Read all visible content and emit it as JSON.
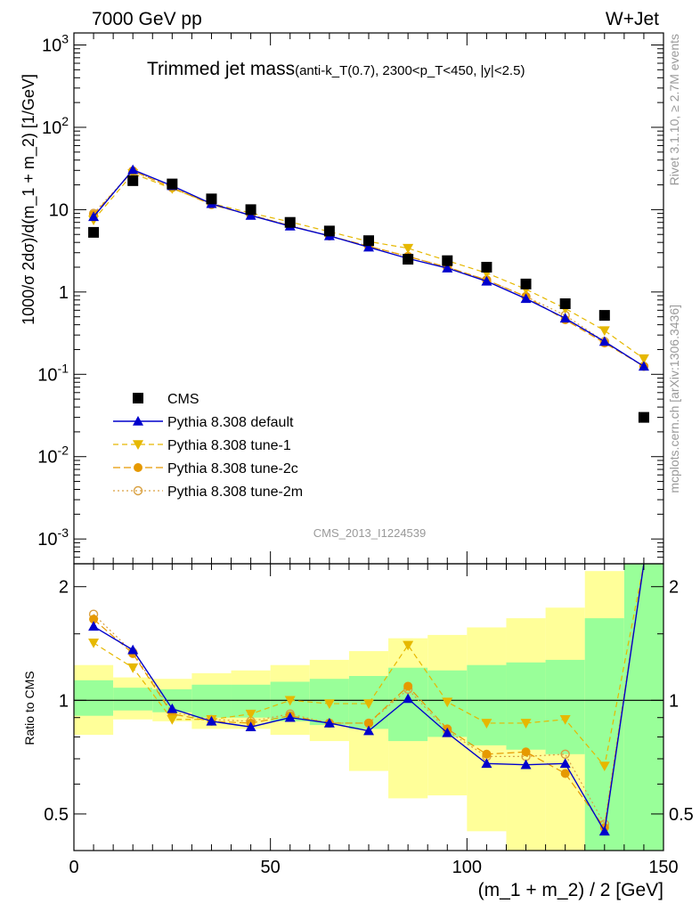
{
  "header": {
    "energy": "7000 GeV pp",
    "process": "W+Jet"
  },
  "side_labels": {
    "rivet": "Rivet 3.1.10, ≥ 2.7M events",
    "mcplots": "mcplots.cern.ch [arXiv:1306.3436]"
  },
  "analysis_id": "CMS_2013_I1224539",
  "colors": {
    "cms": "#000000",
    "default": "#0000cc",
    "tune1": "#e6b800",
    "tune2c": "#e69900",
    "tune2m": "#d9a040",
    "band_inner": "#99ff99",
    "band_outer": "#ffff99"
  },
  "chart_data": {
    "type": "line",
    "title_main": "Trimmed jet mass",
    "title_detail": "(anti-k_T(0.7), 2300<p_T<450, |y|<2.5)",
    "xlabel": "(m_1 + m_2) / 2 [GeV]",
    "ylabel": "1000/σ 2dσ)/d(m_1 + m_2) [1/GeV]",
    "ratio_ylabel": "Ratio to CMS",
    "xlim": [
      0,
      150
    ],
    "ylim": [
      0.0005,
      1400
    ],
    "yscale": "log",
    "ratio_ylim": [
      0.4,
      2.3
    ],
    "ratio_yscale": "log",
    "x_ticks": [
      "0",
      "50",
      "100",
      "150"
    ],
    "y_ticks": [
      "10^-3",
      "10^-2",
      "10^-1",
      "1",
      "10",
      "10^2",
      "10^3"
    ],
    "ratio_ticks": [
      "0.5",
      "1",
      "2"
    ],
    "bins": [
      [
        0,
        10
      ],
      [
        10,
        20
      ],
      [
        20,
        30
      ],
      [
        30,
        40
      ],
      [
        40,
        50
      ],
      [
        50,
        60
      ],
      [
        60,
        70
      ],
      [
        70,
        80
      ],
      [
        80,
        90
      ],
      [
        90,
        100
      ],
      [
        100,
        110
      ],
      [
        110,
        120
      ],
      [
        120,
        130
      ],
      [
        130,
        140
      ],
      [
        140,
        150
      ]
    ],
    "x": [
      5,
      15,
      25,
      35,
      45,
      55,
      65,
      75,
      85,
      95,
      105,
      115,
      125,
      135,
      145
    ],
    "legend_position": "lower-left",
    "series": [
      {
        "name": "CMS",
        "key": "cms",
        "values": [
          5.3,
          22.5,
          20.5,
          13.5,
          10.0,
          7.0,
          5.5,
          4.2,
          2.5,
          2.4,
          2.0,
          1.25,
          0.72,
          0.52,
          0.03
        ]
      },
      {
        "name": "Pythia 8.308 default",
        "key": "default",
        "values": [
          8.2,
          30.5,
          19.5,
          11.8,
          8.5,
          6.3,
          4.8,
          3.5,
          2.55,
          1.95,
          1.35,
          0.83,
          0.48,
          0.25,
          0.125
        ]
      },
      {
        "name": "Pythia 8.308 tune-1",
        "key": "tune1",
        "values": [
          7.5,
          27.5,
          18.0,
          11.9,
          9.1,
          7.1,
          5.4,
          4.1,
          3.4,
          2.4,
          1.7,
          1.08,
          0.63,
          0.34,
          0.155
        ]
      },
      {
        "name": "Pythia 8.308 tune-2c",
        "key": "tune2c",
        "values": [
          8.7,
          29.5,
          18.5,
          11.5,
          8.6,
          6.4,
          4.8,
          3.6,
          2.7,
          2.0,
          1.4,
          0.88,
          0.46,
          0.24,
          0.125
        ]
      },
      {
        "name": "Pythia 8.308 tune-2m",
        "key": "tune2m",
        "values": [
          9.0,
          29.5,
          18.7,
          11.6,
          8.7,
          6.4,
          4.8,
          3.6,
          2.7,
          2.0,
          1.4,
          0.88,
          0.52,
          0.25,
          0.125
        ]
      }
    ],
    "ratio_series": [
      {
        "key": "default",
        "values": [
          1.57,
          1.36,
          0.95,
          0.88,
          0.85,
          0.9,
          0.87,
          0.83,
          1.01,
          0.82,
          0.68,
          0.675,
          0.68,
          0.45,
          4.2
        ]
      },
      {
        "key": "tune1",
        "values": [
          1.42,
          1.22,
          0.89,
          0.89,
          0.92,
          1.0,
          0.98,
          0.98,
          1.4,
          0.99,
          0.87,
          0.87,
          0.89,
          0.67,
          5.0
        ]
      },
      {
        "key": "tune2c",
        "values": [
          1.64,
          1.33,
          0.92,
          0.88,
          0.87,
          0.91,
          0.87,
          0.87,
          1.09,
          0.84,
          0.72,
          0.73,
          0.64,
          0.46,
          4.2
        ]
      },
      {
        "key": "tune2m",
        "values": [
          1.69,
          1.34,
          0.93,
          0.89,
          0.88,
          0.92,
          0.87,
          0.87,
          1.07,
          0.83,
          0.71,
          0.71,
          0.72,
          0.47,
          4.2
        ]
      }
    ],
    "band_inner": [
      [
        0.91,
        1.13
      ],
      [
        0.94,
        1.08
      ],
      [
        0.93,
        1.07
      ],
      [
        0.9,
        1.1
      ],
      [
        0.9,
        1.1
      ],
      [
        0.88,
        1.12
      ],
      [
        0.86,
        1.14
      ],
      [
        0.84,
        1.16
      ],
      [
        0.78,
        1.22
      ],
      [
        0.8,
        1.2
      ],
      [
        0.76,
        1.24
      ],
      [
        0.74,
        1.26
      ],
      [
        0.72,
        1.28
      ],
      [
        0.3,
        1.65
      ],
      [
        0.3,
        2.4
      ]
    ],
    "band_outer": [
      [
        0.81,
        1.24
      ],
      [
        0.89,
        1.15
      ],
      [
        0.88,
        1.14
      ],
      [
        0.84,
        1.18
      ],
      [
        0.84,
        1.2
      ],
      [
        0.81,
        1.24
      ],
      [
        0.78,
        1.28
      ],
      [
        0.65,
        1.35
      ],
      [
        0.55,
        1.46
      ],
      [
        0.56,
        1.49
      ],
      [
        0.45,
        1.56
      ],
      [
        0.3,
        1.65
      ],
      [
        0.3,
        1.76
      ],
      [
        0.3,
        2.2
      ],
      [
        0.3,
        2.4
      ]
    ]
  }
}
